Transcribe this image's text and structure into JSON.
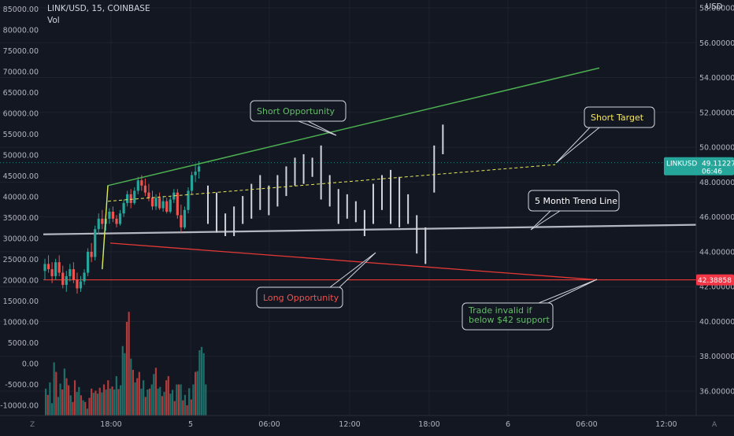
{
  "header": {
    "symbol_line": "LINK/USD, 15, COINBASE",
    "volume_label": "Vol"
  },
  "right_axis_currency": "USD",
  "price_tag": {
    "symbol": "LINKUSD",
    "value": "49.11227",
    "countdown": "06:46",
    "color": "#26a69a"
  },
  "support_tag": {
    "value": "42.38858",
    "color": "#f23645"
  },
  "bottom_axis": {
    "left_label": "Z",
    "right_label": "A"
  },
  "colors": {
    "up": "#26a69a",
    "down": "#ef5350",
    "vol_up": "#1e6f69",
    "vol_down": "#b23a3a",
    "green_line": "#4caf50",
    "red_line": "#e53935",
    "trend_line": "#d1d4dc",
    "yellow": "#e8e85a"
  },
  "annotations": [
    {
      "text": "Short Opportunity",
      "color": "#66bb6a"
    },
    {
      "text": "Short Target",
      "color": "#f5e663"
    },
    {
      "text": "5 Month Trend Line",
      "color": "#ffffff"
    },
    {
      "text": "Long Opportunity",
      "color": "#ef5350"
    },
    {
      "text": "Trade invalid if below $42 support",
      "color": "#66bb6a"
    }
  ],
  "chart_data": {
    "type": "candlestick",
    "title": "LINK/USD, 15, COINBASE",
    "right_axis": {
      "ticks": [
        "36.00000",
        "38.00000",
        "40.00000",
        "42.00000",
        "44.00000",
        "46.00000",
        "48.00000",
        "50.00000",
        "52.00000",
        "54.00000",
        "56.00000",
        "58.00000"
      ],
      "range": [
        35.0,
        58.2
      ]
    },
    "left_axis": {
      "ticks": [
        "-10000.00",
        "-5000.00",
        "0.00",
        "5000.00",
        "10000.00",
        "15000.00",
        "20000.00",
        "25000.00",
        "30000.00",
        "35000.00",
        "40000.00",
        "45000.00",
        "50000.00",
        "55000.00",
        "60000.00",
        "65000.00",
        "70000.00",
        "75000.00",
        "80000.00",
        "85000.00"
      ],
      "range": [
        -12000,
        86800
      ]
    },
    "time_axis": {
      "ticks": [
        "18:00",
        "5",
        "06:00",
        "12:00",
        "18:00",
        "6",
        "06:00",
        "12:00"
      ]
    },
    "last_price": 49.11227,
    "support_level": 42.38858,
    "candles": [
      [
        42.9,
        43.6,
        42.4,
        43.3
      ],
      [
        43.3,
        43.8,
        42.8,
        43.0
      ],
      [
        43.0,
        43.4,
        42.2,
        42.6
      ],
      [
        42.6,
        43.6,
        42.4,
        43.4
      ],
      [
        43.4,
        43.8,
        42.6,
        42.8
      ],
      [
        42.8,
        43.2,
        41.9,
        42.1
      ],
      [
        42.1,
        42.9,
        41.7,
        42.6
      ],
      [
        42.6,
        43.3,
        42.3,
        43.0
      ],
      [
        43.0,
        43.4,
        42.2,
        42.4
      ],
      [
        42.4,
        42.8,
        41.6,
        41.9
      ],
      [
        41.9,
        42.6,
        41.7,
        42.3
      ],
      [
        42.3,
        43.0,
        42.1,
        42.8
      ],
      [
        42.8,
        44.2,
        42.6,
        44.0
      ],
      [
        44.0,
        44.5,
        43.4,
        43.7
      ],
      [
        43.7,
        45.5,
        43.5,
        45.3
      ],
      [
        45.3,
        46.2,
        45.0,
        45.9
      ],
      [
        45.9,
        46.4,
        45.3,
        45.6
      ],
      [
        45.6,
        46.1,
        45.2,
        45.9
      ],
      [
        45.9,
        46.5,
        45.6,
        46.3
      ],
      [
        46.3,
        46.6,
        45.7,
        45.9
      ],
      [
        45.9,
        46.1,
        45.4,
        45.6
      ],
      [
        45.6,
        46.4,
        45.5,
        46.2
      ],
      [
        46.2,
        47.0,
        46.0,
        46.8
      ],
      [
        46.8,
        47.5,
        46.6,
        47.3
      ],
      [
        47.3,
        47.6,
        46.5,
        46.8
      ],
      [
        46.8,
        47.7,
        46.7,
        47.5
      ],
      [
        47.5,
        48.3,
        47.3,
        48.1
      ],
      [
        48.1,
        48.4,
        47.5,
        47.8
      ],
      [
        47.8,
        48.2,
        47.2,
        47.4
      ],
      [
        47.4,
        47.9,
        46.9,
        47.1
      ],
      [
        47.1,
        47.5,
        46.4,
        46.6
      ],
      [
        46.6,
        47.3,
        46.4,
        47.1
      ],
      [
        47.1,
        47.4,
        46.4,
        46.5
      ],
      [
        46.5,
        47.2,
        46.3,
        46.9
      ],
      [
        46.9,
        47.1,
        46.2,
        46.3
      ],
      [
        46.3,
        47.2,
        46.2,
        47.0
      ],
      [
        47.0,
        47.6,
        46.8,
        47.4
      ],
      [
        47.4,
        47.6,
        45.9,
        46.1
      ],
      [
        46.1,
        46.7,
        45.1,
        45.4
      ],
      [
        45.4,
        46.6,
        45.3,
        46.4
      ],
      [
        46.4,
        47.7,
        46.2,
        47.5
      ],
      [
        47.5,
        48.6,
        47.3,
        48.4
      ],
      [
        48.4,
        49.0,
        48.0,
        48.6
      ],
      [
        48.6,
        49.2,
        48.2,
        48.9
      ]
    ],
    "projection_bars": [
      [
        47.8,
        45.6
      ],
      [
        47.4,
        45.1
      ],
      [
        46.2,
        44.9
      ],
      [
        46.6,
        44.9
      ],
      [
        47.2,
        45.6
      ],
      [
        47.9,
        45.9
      ],
      [
        48.4,
        46.4
      ],
      [
        47.8,
        46.1
      ],
      [
        48.4,
        46.6
      ],
      [
        48.9,
        47.2
      ],
      [
        49.4,
        47.8
      ],
      [
        49.6,
        47.9
      ],
      [
        49.4,
        48.3
      ],
      [
        50.1,
        47.0
      ],
      [
        48.4,
        46.6
      ],
      [
        47.6,
        45.6
      ],
      [
        47.3,
        45.9
      ],
      [
        46.9,
        45.7
      ],
      [
        46.4,
        44.9
      ],
      [
        47.9,
        45.6
      ],
      [
        48.4,
        46.4
      ],
      [
        48.7,
        45.6
      ],
      [
        48.3,
        45.4
      ],
      [
        47.3,
        45.6
      ],
      [
        46.1,
        43.9
      ],
      [
        45.4,
        43.3
      ],
      [
        50.1,
        47.4
      ],
      [
        51.3,
        49.6
      ]
    ],
    "volume": [
      [
        -6000,
        1
      ],
      [
        -7500,
        0
      ],
      [
        -4500,
        1
      ],
      [
        -9500,
        1
      ],
      [
        300,
        1
      ],
      [
        -2000,
        0
      ],
      [
        -8000,
        1
      ],
      [
        -4800,
        1
      ],
      [
        -6200,
        0
      ],
      [
        -1200,
        1
      ],
      [
        -3500,
        0
      ],
      [
        -5200,
        0
      ],
      [
        -7600,
        1
      ],
      [
        -9200,
        0
      ],
      [
        -4000,
        0
      ],
      [
        -6800,
        1
      ],
      [
        -5600,
        1
      ],
      [
        -7600,
        0
      ],
      [
        -8800,
        1
      ],
      [
        -9200,
        0
      ],
      [
        -10800,
        1
      ],
      [
        -8200,
        0
      ],
      [
        -6000,
        0
      ],
      [
        -7000,
        1
      ],
      [
        -6500,
        0
      ],
      [
        -7200,
        1
      ],
      [
        -5800,
        0
      ],
      [
        -6900,
        1
      ],
      [
        -5000,
        0
      ],
      [
        -6200,
        1
      ],
      [
        -4000,
        0
      ],
      [
        -6000,
        1
      ],
      [
        -5500,
        0
      ],
      [
        -6200,
        1
      ],
      [
        -3000,
        1
      ],
      [
        -6100,
        0
      ],
      [
        -5200,
        1
      ],
      [
        4200,
        1
      ],
      [
        2500,
        1
      ],
      [
        10000,
        0
      ],
      [
        12400,
        0
      ],
      [
        1200,
        1
      ],
      [
        -1500,
        0
      ],
      [
        -4500,
        1
      ],
      [
        -3500,
        0
      ],
      [
        -2000,
        0
      ],
      [
        -6000,
        1
      ],
      [
        -4000,
        1
      ],
      [
        -8000,
        0
      ],
      [
        -6200,
        1
      ],
      [
        -6000,
        0
      ],
      [
        -5000,
        1
      ],
      [
        -2500,
        1
      ],
      [
        -1000,
        0
      ],
      [
        -6000,
        1
      ],
      [
        -5600,
        1
      ],
      [
        -7800,
        0
      ],
      [
        -6800,
        1
      ],
      [
        -4000,
        0
      ],
      [
        -3000,
        0
      ],
      [
        -7200,
        1
      ],
      [
        -6300,
        1
      ],
      [
        -9000,
        0
      ],
      [
        -5000,
        1
      ],
      [
        -5000,
        0
      ],
      [
        -5000,
        1
      ],
      [
        -8800,
        0
      ],
      [
        -7500,
        1
      ],
      [
        -10000,
        0
      ],
      [
        -5900,
        1
      ],
      [
        -8600,
        0
      ],
      [
        -5000,
        1
      ],
      [
        -2000,
        0
      ],
      [
        -1800,
        1
      ],
      [
        3200,
        1
      ],
      [
        4000,
        1
      ],
      [
        2500,
        1
      ],
      [
        -5000,
        1
      ]
    ]
  }
}
